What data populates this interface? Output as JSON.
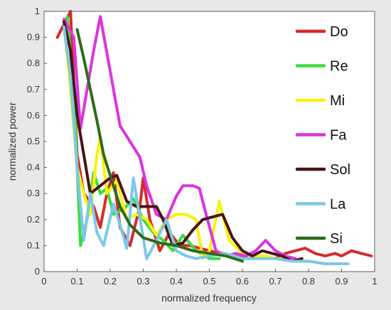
{
  "chart_data": {
    "type": "line",
    "xlabel": "normalized frequency",
    "ylabel": "normalized power",
    "xlim": [
      0,
      1
    ],
    "ylim": [
      0,
      1
    ],
    "x_ticks": [
      "0",
      "0.1",
      "0.2",
      "0.3",
      "0.4",
      "0.5",
      "0.6",
      "0.7",
      "0.8",
      "0.9",
      "1"
    ],
    "y_ticks": [
      "0",
      "0.1",
      "0.2",
      "0.3",
      "0.4",
      "0.5",
      "0.6",
      "0.7",
      "0.8",
      "0.9",
      "1"
    ],
    "grid": false,
    "legend_position": "right",
    "series": [
      {
        "name": "Do",
        "color": "#d62a2a",
        "points": [
          [
            0.04,
            0.9
          ],
          [
            0.06,
            0.95
          ],
          [
            0.08,
            1.0
          ],
          [
            0.1,
            0.45
          ],
          [
            0.12,
            0.3
          ],
          [
            0.15,
            0.25
          ],
          [
            0.17,
            0.17
          ],
          [
            0.19,
            0.3
          ],
          [
            0.21,
            0.38
          ],
          [
            0.23,
            0.17
          ],
          [
            0.26,
            0.1
          ],
          [
            0.29,
            0.25
          ],
          [
            0.3,
            0.36
          ],
          [
            0.32,
            0.2
          ],
          [
            0.35,
            0.08
          ],
          [
            0.38,
            0.15
          ],
          [
            0.41,
            0.1
          ],
          [
            0.44,
            0.1
          ],
          [
            0.47,
            0.09
          ],
          [
            0.5,
            0.08
          ],
          [
            0.54,
            0.07
          ],
          [
            0.58,
            0.06
          ],
          [
            0.62,
            0.05
          ],
          [
            0.66,
            0.06
          ],
          [
            0.7,
            0.05
          ],
          [
            0.73,
            0.07
          ],
          [
            0.76,
            0.08
          ],
          [
            0.79,
            0.09
          ],
          [
            0.82,
            0.07
          ],
          [
            0.85,
            0.06
          ],
          [
            0.88,
            0.07
          ],
          [
            0.9,
            0.06
          ],
          [
            0.93,
            0.08
          ],
          [
            0.96,
            0.07
          ],
          [
            0.99,
            0.06
          ]
        ]
      },
      {
        "name": "Re",
        "color": "#3ddc3d",
        "points": [
          [
            0.07,
            0.98
          ],
          [
            0.09,
            0.7
          ],
          [
            0.11,
            0.1
          ],
          [
            0.13,
            0.2
          ],
          [
            0.15,
            0.38
          ],
          [
            0.17,
            0.3
          ],
          [
            0.19,
            0.32
          ],
          [
            0.21,
            0.22
          ],
          [
            0.24,
            0.24
          ],
          [
            0.27,
            0.28
          ],
          [
            0.3,
            0.2
          ],
          [
            0.33,
            0.15
          ],
          [
            0.36,
            0.12
          ],
          [
            0.39,
            0.08
          ],
          [
            0.42,
            0.14
          ],
          [
            0.46,
            0.08
          ],
          [
            0.5,
            0.05
          ],
          [
            0.53,
            0.05
          ]
        ]
      },
      {
        "name": "Mi",
        "color": "#f7f20f",
        "points": [
          [
            0.06,
            0.95
          ],
          [
            0.08,
            0.7
          ],
          [
            0.1,
            0.4
          ],
          [
            0.12,
            0.3
          ],
          [
            0.14,
            0.22
          ],
          [
            0.16,
            0.45
          ],
          [
            0.17,
            0.52
          ],
          [
            0.19,
            0.3
          ],
          [
            0.22,
            0.35
          ],
          [
            0.25,
            0.2
          ],
          [
            0.28,
            0.22
          ],
          [
            0.31,
            0.2
          ],
          [
            0.34,
            0.14
          ],
          [
            0.37,
            0.2
          ],
          [
            0.4,
            0.22
          ],
          [
            0.43,
            0.22
          ],
          [
            0.46,
            0.2
          ],
          [
            0.48,
            0.05
          ],
          [
            0.5,
            0.08
          ],
          [
            0.53,
            0.27
          ],
          [
            0.56,
            0.12
          ],
          [
            0.6,
            0.07
          ],
          [
            0.63,
            0.06
          ],
          [
            0.67,
            0.06
          ],
          [
            0.7,
            0.05
          ],
          [
            0.74,
            0.05
          ]
        ]
      },
      {
        "name": "Fa",
        "color": "#dd33dd",
        "points": [
          [
            0.06,
            0.97
          ],
          [
            0.09,
            0.9
          ],
          [
            0.11,
            0.55
          ],
          [
            0.13,
            0.7
          ],
          [
            0.15,
            0.85
          ],
          [
            0.17,
            0.98
          ],
          [
            0.2,
            0.77
          ],
          [
            0.23,
            0.56
          ],
          [
            0.26,
            0.5
          ],
          [
            0.29,
            0.44
          ],
          [
            0.31,
            0.33
          ],
          [
            0.34,
            0.22
          ],
          [
            0.37,
            0.2
          ],
          [
            0.4,
            0.29
          ],
          [
            0.42,
            0.33
          ],
          [
            0.45,
            0.33
          ],
          [
            0.47,
            0.32
          ],
          [
            0.49,
            0.22
          ],
          [
            0.52,
            0.08
          ],
          [
            0.55,
            0.06
          ],
          [
            0.58,
            0.07
          ],
          [
            0.61,
            0.06
          ],
          [
            0.64,
            0.08
          ],
          [
            0.67,
            0.12
          ],
          [
            0.7,
            0.08
          ],
          [
            0.73,
            0.06
          ],
          [
            0.76,
            0.05
          ]
        ]
      },
      {
        "name": "Sol",
        "color": "#4a1515",
        "points": [
          [
            0.06,
            0.96
          ],
          [
            0.08,
            0.85
          ],
          [
            0.1,
            0.6
          ],
          [
            0.12,
            0.45
          ],
          [
            0.14,
            0.3
          ],
          [
            0.17,
            0.33
          ],
          [
            0.2,
            0.36
          ],
          [
            0.22,
            0.37
          ],
          [
            0.25,
            0.27
          ],
          [
            0.28,
            0.25
          ],
          [
            0.31,
            0.25
          ],
          [
            0.34,
            0.25
          ],
          [
            0.36,
            0.2
          ],
          [
            0.39,
            0.1
          ],
          [
            0.42,
            0.11
          ],
          [
            0.45,
            0.16
          ],
          [
            0.48,
            0.2
          ],
          [
            0.51,
            0.21
          ],
          [
            0.54,
            0.22
          ],
          [
            0.57,
            0.13
          ],
          [
            0.6,
            0.08
          ],
          [
            0.63,
            0.06
          ],
          [
            0.66,
            0.08
          ],
          [
            0.69,
            0.07
          ],
          [
            0.72,
            0.06
          ],
          [
            0.75,
            0.04
          ],
          [
            0.78,
            0.05
          ]
        ]
      },
      {
        "name": "La",
        "color": "#7cc8e8",
        "points": [
          [
            0.06,
            0.94
          ],
          [
            0.08,
            0.75
          ],
          [
            0.1,
            0.4
          ],
          [
            0.12,
            0.12
          ],
          [
            0.14,
            0.3
          ],
          [
            0.16,
            0.15
          ],
          [
            0.18,
            0.1
          ],
          [
            0.21,
            0.26
          ],
          [
            0.23,
            0.18
          ],
          [
            0.25,
            0.09
          ],
          [
            0.27,
            0.36
          ],
          [
            0.3,
            0.13
          ],
          [
            0.31,
            0.05
          ],
          [
            0.34,
            0.12
          ],
          [
            0.37,
            0.2
          ],
          [
            0.4,
            0.08
          ],
          [
            0.43,
            0.06
          ],
          [
            0.46,
            0.05
          ],
          [
            0.5,
            0.06
          ],
          [
            0.55,
            0.07
          ],
          [
            0.6,
            0.05
          ],
          [
            0.65,
            0.05
          ],
          [
            0.7,
            0.05
          ],
          [
            0.75,
            0.04
          ],
          [
            0.8,
            0.04
          ],
          [
            0.85,
            0.03
          ],
          [
            0.9,
            0.03
          ],
          [
            0.92,
            0.03
          ]
        ]
      },
      {
        "name": "Si",
        "color": "#2e6b1a",
        "points": [
          [
            0.1,
            0.93
          ],
          [
            0.12,
            0.82
          ],
          [
            0.14,
            0.7
          ],
          [
            0.16,
            0.58
          ],
          [
            0.18,
            0.45
          ],
          [
            0.21,
            0.33
          ],
          [
            0.23,
            0.25
          ],
          [
            0.26,
            0.18
          ],
          [
            0.3,
            0.13
          ],
          [
            0.35,
            0.11
          ],
          [
            0.4,
            0.1
          ],
          [
            0.45,
            0.08
          ],
          [
            0.5,
            0.07
          ],
          [
            0.55,
            0.06
          ],
          [
            0.6,
            0.04
          ]
        ]
      }
    ]
  }
}
